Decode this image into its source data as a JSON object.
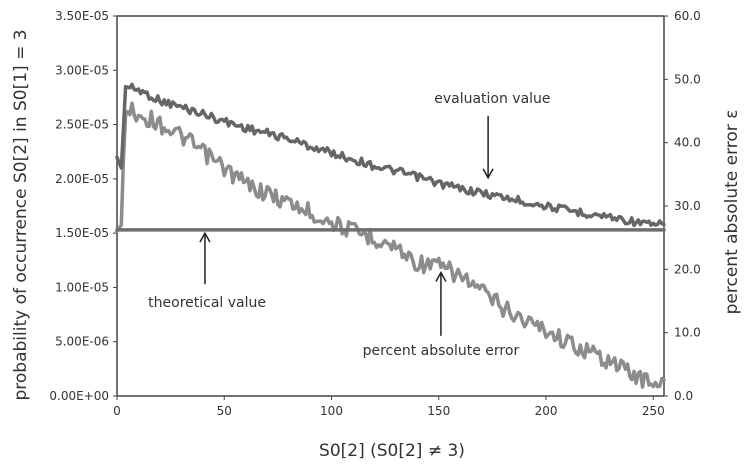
{
  "chart_data": {
    "type": "line",
    "title": "",
    "xlabel": "S0[2] (S0[2] ≠ 3)",
    "ylabel_left": "probability of occurrence S0[2] in S0[1] = 3",
    "ylabel_right": "percent absolute error ε",
    "xlim": [
      0,
      255
    ],
    "ylim_left": [
      0,
      3.5e-05
    ],
    "ylim_right": [
      0,
      60
    ],
    "x_ticks": [
      "0",
      "50",
      "100",
      "150",
      "200",
      "250"
    ],
    "y_ticks_left": [
      "0.00E+00",
      "5.00E-06",
      "1.00E-05",
      "1.50E-05",
      "2.00E-05",
      "2.50E-05",
      "3.00E-05",
      "3.50E-05"
    ],
    "y_ticks_right": [
      "0.0",
      "10.0",
      "20.0",
      "30.0",
      "40.0",
      "50.0",
      "60.0"
    ],
    "colors": {
      "evaluation": "#666666",
      "error": "#8c8c8c",
      "theoretical": "#6e6e6e",
      "axis": "#444444"
    },
    "series": [
      {
        "name": "evaluation value",
        "axis": "left",
        "x": [
          0,
          2,
          4,
          10,
          20,
          30,
          40,
          50,
          60,
          70,
          80,
          90,
          100,
          110,
          120,
          130,
          140,
          150,
          160,
          170,
          180,
          190,
          200,
          210,
          220,
          230,
          240,
          250,
          255
        ],
        "y": [
          2.2e-05,
          2.1e-05,
          2.85e-05,
          2.82e-05,
          2.72e-05,
          2.66e-05,
          2.6e-05,
          2.53e-05,
          2.47e-05,
          2.42e-05,
          2.37e-05,
          2.3e-05,
          2.24e-05,
          2.18e-05,
          2.12e-05,
          2.07e-05,
          2.02e-05,
          1.96e-05,
          1.91e-05,
          1.87e-05,
          1.83e-05,
          1.79e-05,
          1.75e-05,
          1.71e-05,
          1.68e-05,
          1.65e-05,
          1.61e-05,
          1.57e-05,
          1.58e-05
        ]
      },
      {
        "name": "theoretical value",
        "axis": "left",
        "x": [
          0,
          255
        ],
        "y": [
          1.53e-05,
          1.53e-05
        ]
      },
      {
        "name": "percent absolute error",
        "axis": "right",
        "x": [
          0,
          2,
          4,
          10,
          20,
          30,
          40,
          50,
          60,
          70,
          80,
          90,
          100,
          110,
          120,
          130,
          140,
          150,
          160,
          170,
          180,
          190,
          200,
          210,
          220,
          230,
          240,
          250,
          255
        ],
        "y": [
          26,
          27,
          45.5,
          44.5,
          43,
          41,
          38.5,
          36,
          33.5,
          32,
          30.5,
          29,
          27.5,
          26,
          25,
          23.5,
          21,
          20.5,
          19,
          16.5,
          14,
          12,
          10.5,
          8.5,
          7,
          5.5,
          3.5,
          2,
          2.5
        ]
      }
    ],
    "annotations": [
      {
        "text": "evaluation value",
        "target_series": "evaluation value"
      },
      {
        "text": "theoretical value",
        "target_series": "theoretical value"
      },
      {
        "text": "percent absolute error",
        "target_series": "percent absolute error"
      }
    ],
    "grid": false,
    "legend": "none"
  }
}
